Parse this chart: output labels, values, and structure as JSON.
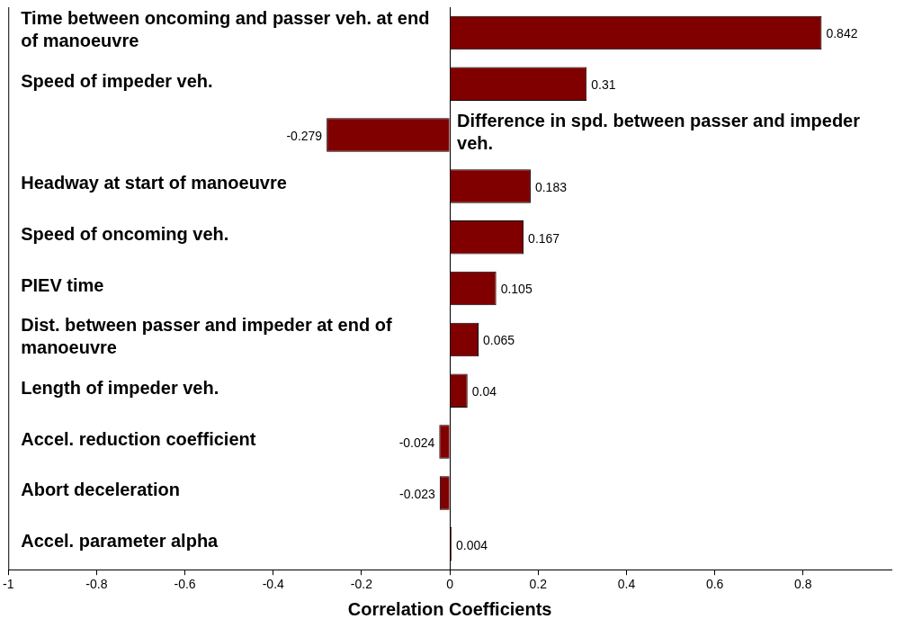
{
  "chart_data": {
    "type": "bar",
    "orientation": "horizontal",
    "xlabel": "Correlation Coefficients",
    "categories": [
      "Time between oncoming and passer veh. at end of manoeuvre",
      "Speed of impeder veh.",
      "Difference in spd. between passer and impeder veh.",
      "Headway at start of manoeuvre",
      "Speed of oncoming veh.",
      "PIEV time",
      "Dist. between passer and impeder at end of manoeuvre",
      "Length of impeder veh.",
      "Accel. reduction coefficient",
      "Abort deceleration",
      "Accel. parameter alpha"
    ],
    "values": [
      0.842,
      0.31,
      -0.279,
      0.183,
      0.167,
      0.105,
      0.065,
      0.04,
      -0.024,
      -0.023,
      0.004
    ],
    "color": "#800000",
    "xlim": [
      -1,
      1
    ],
    "xticks": [
      -1,
      -0.8,
      -0.6,
      -0.4,
      -0.2,
      0,
      0.2,
      0.4,
      0.6,
      0.8
    ],
    "data_labels": true
  }
}
